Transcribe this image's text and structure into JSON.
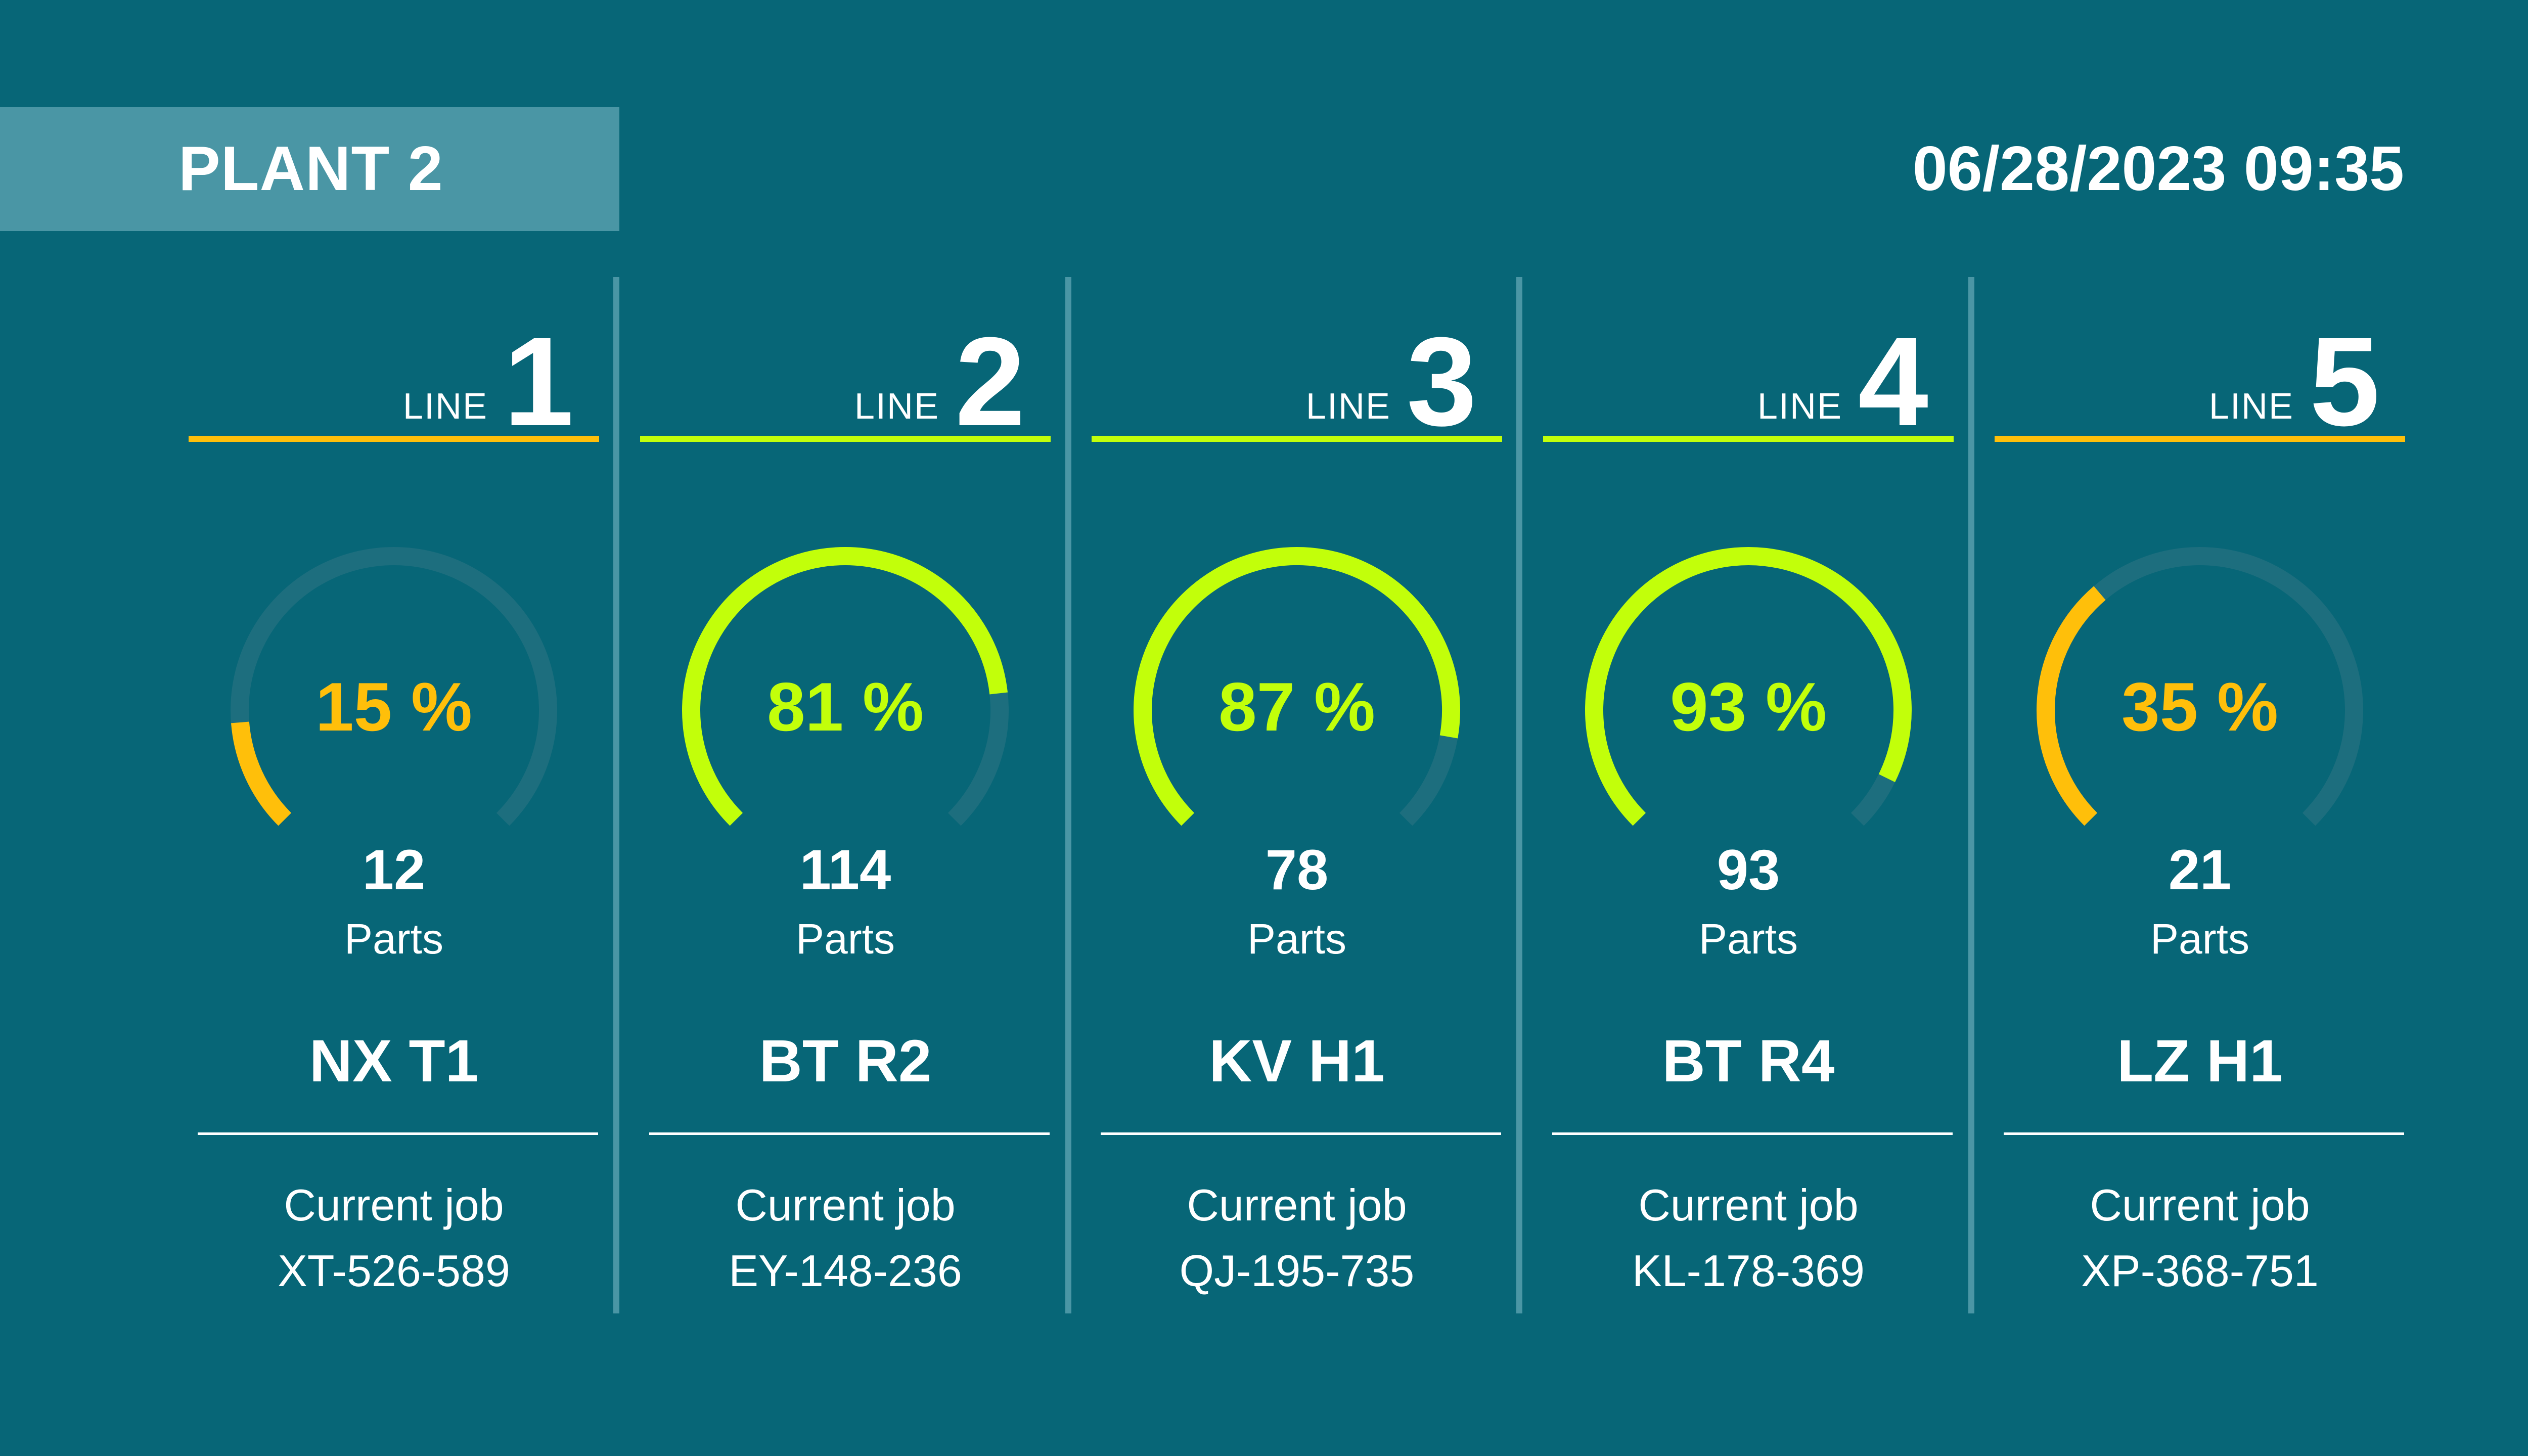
{
  "header": {
    "plant_title": "PLANT 2",
    "datetime": "06/28/2023 09:35"
  },
  "colors": {
    "background": "#076677",
    "banner": "#4a96a5",
    "track": "#1d6e7e",
    "ok": "#c2ff0a",
    "warn": "#ffbf0a",
    "text": "#ffffff"
  },
  "lines": [
    {
      "line_word": "LINE",
      "number": "1",
      "percent": 15,
      "percent_label": "15 %",
      "status": "warn",
      "parts": "12",
      "parts_label": "Parts",
      "product": "NX T1",
      "job_label": "Current job",
      "job_code": "XT-526-589"
    },
    {
      "line_word": "LINE",
      "number": "2",
      "percent": 81,
      "percent_label": "81 %",
      "status": "ok",
      "parts": "114",
      "parts_label": "Parts",
      "product": "BT R2",
      "job_label": "Current job",
      "job_code": "EY-148-236"
    },
    {
      "line_word": "LINE",
      "number": "3",
      "percent": 87,
      "percent_label": "87 %",
      "status": "ok",
      "parts": "78",
      "parts_label": "Parts",
      "product": "KV H1",
      "job_label": "Current job",
      "job_code": "QJ-195-735"
    },
    {
      "line_word": "LINE",
      "number": "4",
      "percent": 93,
      "percent_label": "93 %",
      "status": "ok",
      "parts": "93",
      "parts_label": "Parts",
      "product": "BT R4",
      "job_label": "Current job",
      "job_code": "KL-178-369"
    },
    {
      "line_word": "LINE",
      "number": "5",
      "percent": 35,
      "percent_label": "35 %",
      "status": "warn",
      "parts": "21",
      "parts_label": "Parts",
      "product": "LZ H1",
      "job_label": "Current job",
      "job_code": "XP-368-751"
    }
  ]
}
